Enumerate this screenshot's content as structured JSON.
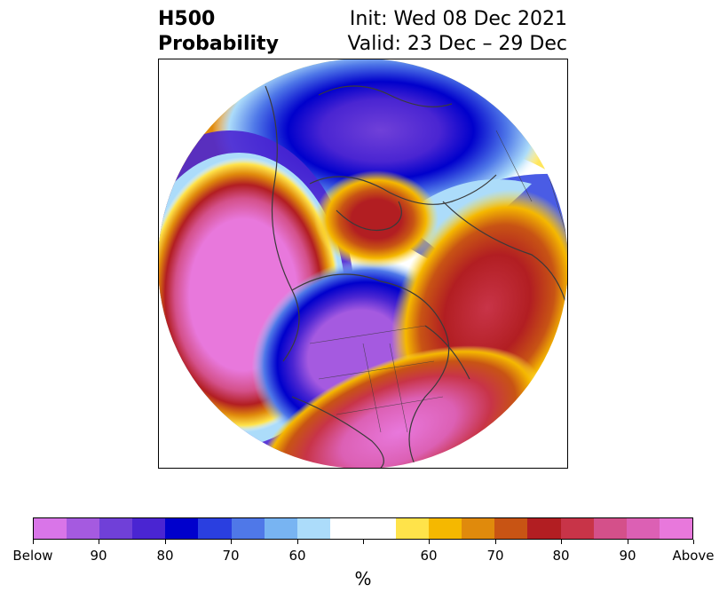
{
  "title": {
    "left_line1": "H500",
    "left_line2": "Probability",
    "right_line1": "Init: Wed 08 Dec 2021",
    "right_line2": "Valid: 23 Dec – 29 Dec"
  },
  "colorbar": {
    "colors": [
      "#d975e8",
      "#a55ae0",
      "#7040d8",
      "#4a25d2",
      "#0000cc",
      "#2a3fe0",
      "#4f78e8",
      "#78b4f2",
      "#acdcfa",
      "#ffffff",
      "#ffffff",
      "#ffe34a",
      "#f5b800",
      "#e08a0c",
      "#c85414",
      "#b21e22",
      "#c83448",
      "#d4508a",
      "#dc60b4",
      "#e878dc"
    ],
    "tick_labels": [
      "Below",
      "90",
      "80",
      "70",
      "60",
      "",
      "60",
      "70",
      "80",
      "90",
      "Above"
    ],
    "unit_label": "%"
  }
}
